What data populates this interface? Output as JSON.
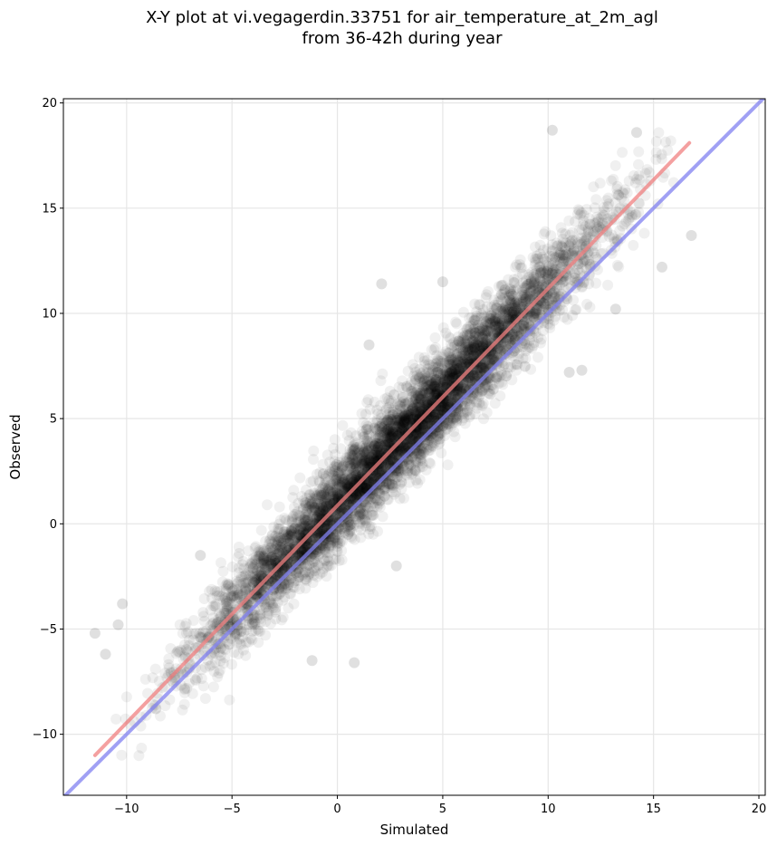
{
  "chart_data": {
    "type": "scatter",
    "title": "X-Y plot at vi.vegagerdin.33751 for air_temperature_at_2m_agl",
    "subtitle": "from 36-42h during year",
    "xlabel": "Simulated",
    "ylabel": "Observed",
    "xlim": [
      -13,
      20.3
    ],
    "ylim": [
      -12.9,
      20.2
    ],
    "xticks": [
      -10,
      -5,
      0,
      5,
      10,
      15,
      20
    ],
    "yticks": [
      -10,
      -5,
      0,
      5,
      10,
      15,
      20
    ],
    "xtick_labels": [
      "−10",
      "−5",
      "0",
      "5",
      "10",
      "15",
      "20"
    ],
    "ytick_labels": [
      "−10",
      "−5",
      "0",
      "5",
      "10",
      "15",
      "20"
    ],
    "grid": true,
    "point_color": "#000000",
    "point_alpha": 0.06,
    "point_count": 6000,
    "point_cloud": {
      "trend_slope": 1.04,
      "trend_intercept": 0.9,
      "x_range": [
        -11.5,
        16.8
      ],
      "x_mode": 3.5,
      "residual_sd": 1.05
    },
    "outliers": [
      {
        "x": 10.2,
        "y": 18.7
      },
      {
        "x": 16.8,
        "y": 13.7
      },
      {
        "x": 15.4,
        "y": 12.2
      },
      {
        "x": 11.6,
        "y": 7.3
      },
      {
        "x": 11.0,
        "y": 7.2
      },
      {
        "x": 2.8,
        "y": -2.0
      },
      {
        "x": 2.1,
        "y": 11.4
      },
      {
        "x": 5.0,
        "y": 11.5
      },
      {
        "x": 1.5,
        "y": 8.5
      },
      {
        "x": -1.2,
        "y": -6.5
      },
      {
        "x": -11.5,
        "y": -5.2
      },
      {
        "x": -10.2,
        "y": -3.8
      },
      {
        "x": -10.4,
        "y": -4.8
      },
      {
        "x": -11.0,
        "y": -6.2
      },
      {
        "x": 14.2,
        "y": 18.6
      },
      {
        "x": 13.2,
        "y": 10.2
      },
      {
        "x": -6.5,
        "y": -1.5
      },
      {
        "x": 0.8,
        "y": -6.6
      }
    ],
    "series": [
      {
        "name": "",
        "kind": "regression",
        "color": "#f08080",
        "x": [
          -11.5,
          16.7
        ],
        "y": [
          -11.0,
          18.1
        ]
      },
      {
        "name": "",
        "kind": "identity",
        "color": "#8080f0",
        "x": [
          -13,
          20.3
        ],
        "y": [
          -13,
          20.3
        ]
      }
    ]
  }
}
